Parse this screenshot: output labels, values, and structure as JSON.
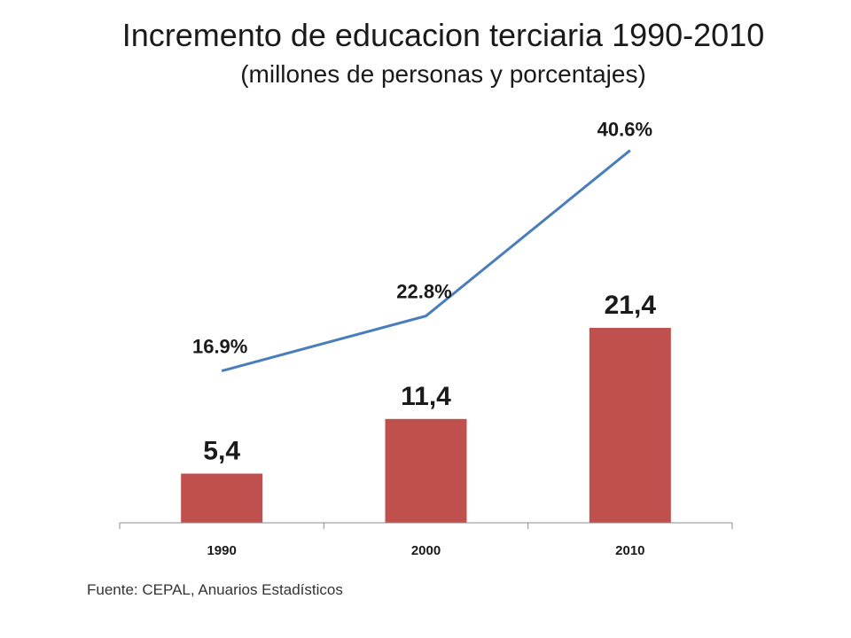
{
  "title": "Incremento de educacion terciaria 1990-2010",
  "subtitle": "(millones de personas y porcentajes)",
  "source": "Fuente: CEPAL, Anuarios Estadísticos",
  "colors": {
    "bar": "#c0504d",
    "line": "#4a7ebb",
    "axis": "#8c8c8c",
    "text": "#1a1a1a"
  },
  "chart_data": {
    "type": "bar",
    "categories": [
      "1990",
      "2000",
      "2010"
    ],
    "series": [
      {
        "values": [
          5.4,
          11.4,
          21.4
        ],
        "labels": [
          "5,4",
          "11,4",
          "21,4"
        ]
      },
      {
        "values": [
          16.9,
          22.8,
          40.6
        ],
        "labels": [
          "16.9%",
          "22.8%",
          "40.6%"
        ]
      }
    ]
  }
}
